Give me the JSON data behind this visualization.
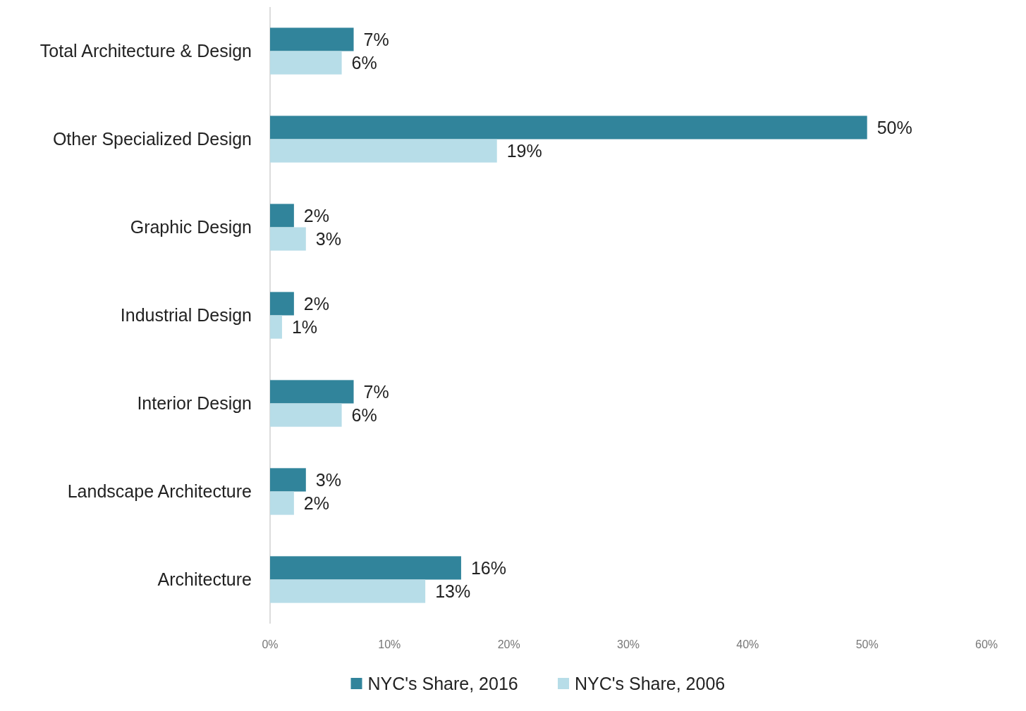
{
  "chart_data": {
    "type": "bar",
    "orientation": "horizontal",
    "categories": [
      "Total Architecture & Design",
      "Other Specialized Design",
      "Graphic Design",
      "Industrial Design",
      "Interior Design",
      "Landscape Architecture",
      "Architecture"
    ],
    "series": [
      {
        "name": "NYC's Share, 2016",
        "color": "#31849b",
        "values": [
          7,
          50,
          2,
          2,
          7,
          3,
          16
        ],
        "value_labels": [
          "7%",
          "50%",
          "2%",
          "2%",
          "7%",
          "3%",
          "16%"
        ]
      },
      {
        "name": "NYC's Share, 2006",
        "color": "#b7dde8",
        "values": [
          6,
          19,
          3,
          1,
          6,
          2,
          13
        ],
        "value_labels": [
          "6%",
          "19%",
          "3%",
          "1%",
          "6%",
          "2%",
          "13%"
        ]
      }
    ],
    "xlim": [
      0,
      60
    ],
    "xticks": [
      {
        "value": 0,
        "label": "0%"
      },
      {
        "value": 10,
        "label": "10%"
      },
      {
        "value": 20,
        "label": "20%"
      },
      {
        "value": 30,
        "label": "30%"
      },
      {
        "value": 40,
        "label": "40%"
      },
      {
        "value": 50,
        "label": "50%"
      },
      {
        "value": 60,
        "label": "60%"
      }
    ],
    "grid": false,
    "legend": "bottom"
  }
}
